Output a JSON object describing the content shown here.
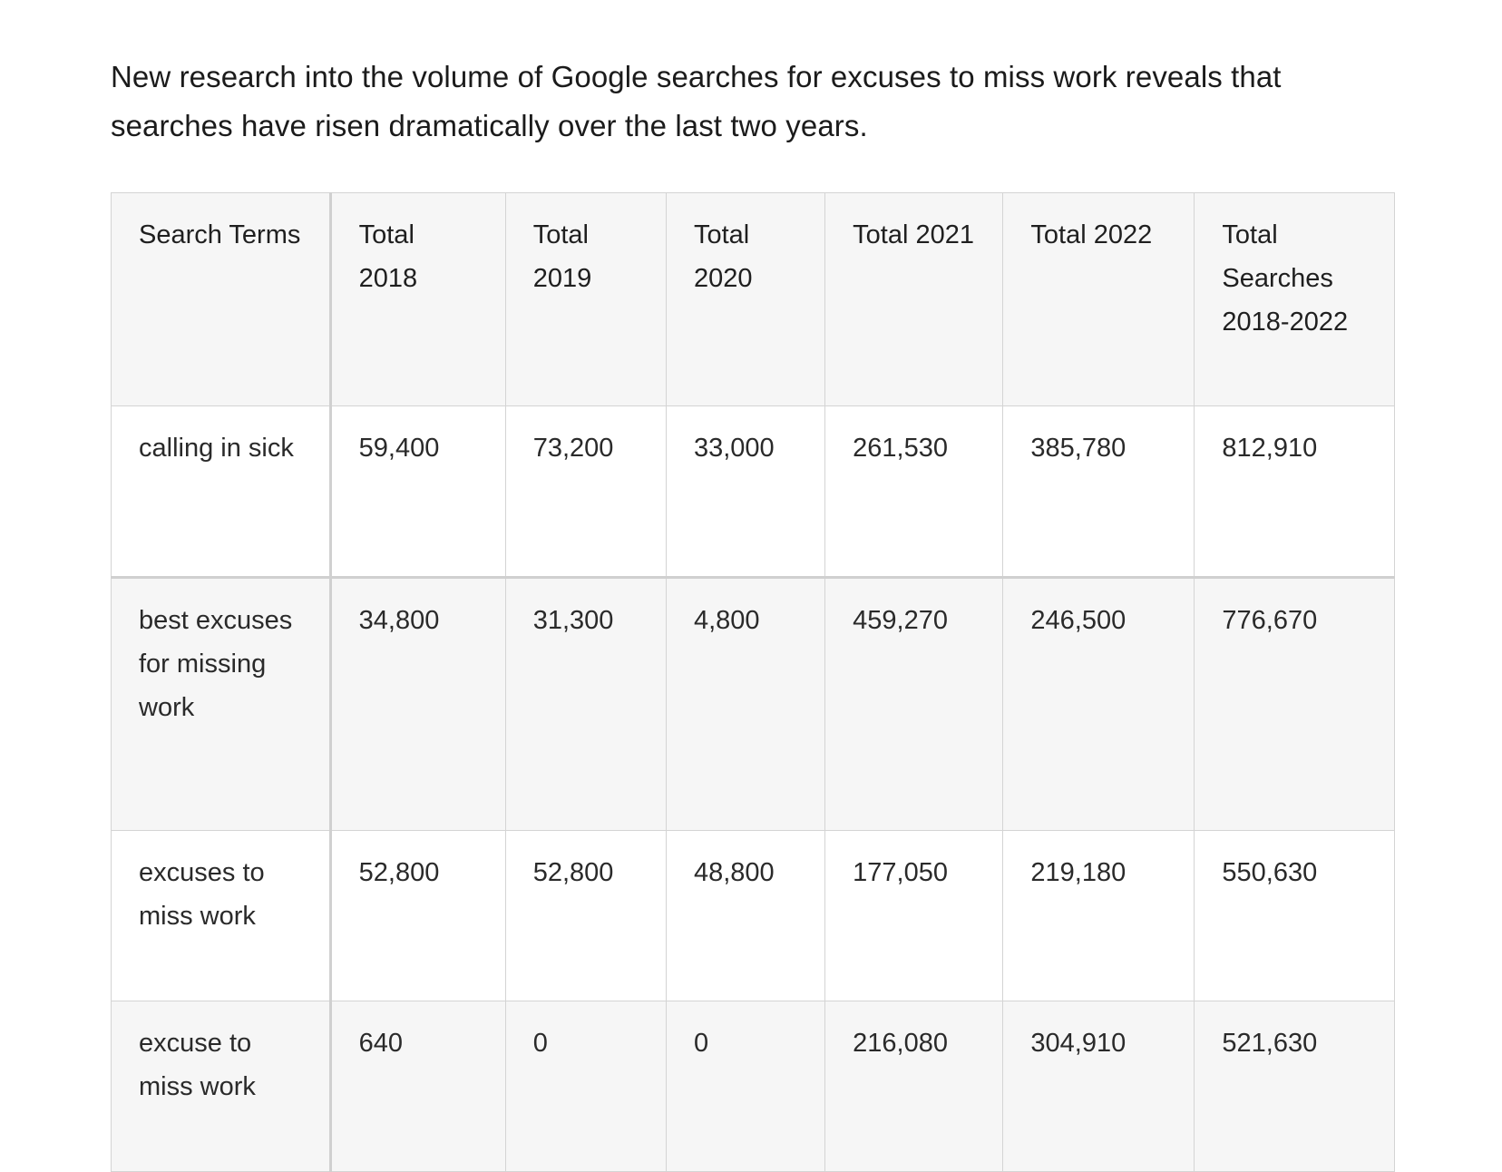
{
  "intro": {
    "text": "New research into the volume of Google searches for excuses to miss work reveals that searches have risen dramatically over the last two years."
  },
  "table": {
    "headers": [
      "Search Terms",
      "Total 2018",
      "Total 2019",
      "Total 2020",
      "Total 2021",
      "Total 2022",
      "Total Searches 2018-2022"
    ],
    "rows": [
      [
        "calling in sick",
        "59,400",
        "73,200",
        "33,000",
        "261,530",
        "385,780",
        "812,910"
      ],
      [
        "best excuses for missing work",
        "34,800",
        "31,300",
        "4,800",
        "459,270",
        "246,500",
        "776,670"
      ],
      [
        "excuses to miss work",
        "52,800",
        "52,800",
        "48,800",
        "177,050",
        "219,180",
        "550,630"
      ],
      [
        "excuse to miss work",
        "640",
        "0",
        "0",
        "216,080",
        "304,910",
        "521,630"
      ]
    ]
  }
}
